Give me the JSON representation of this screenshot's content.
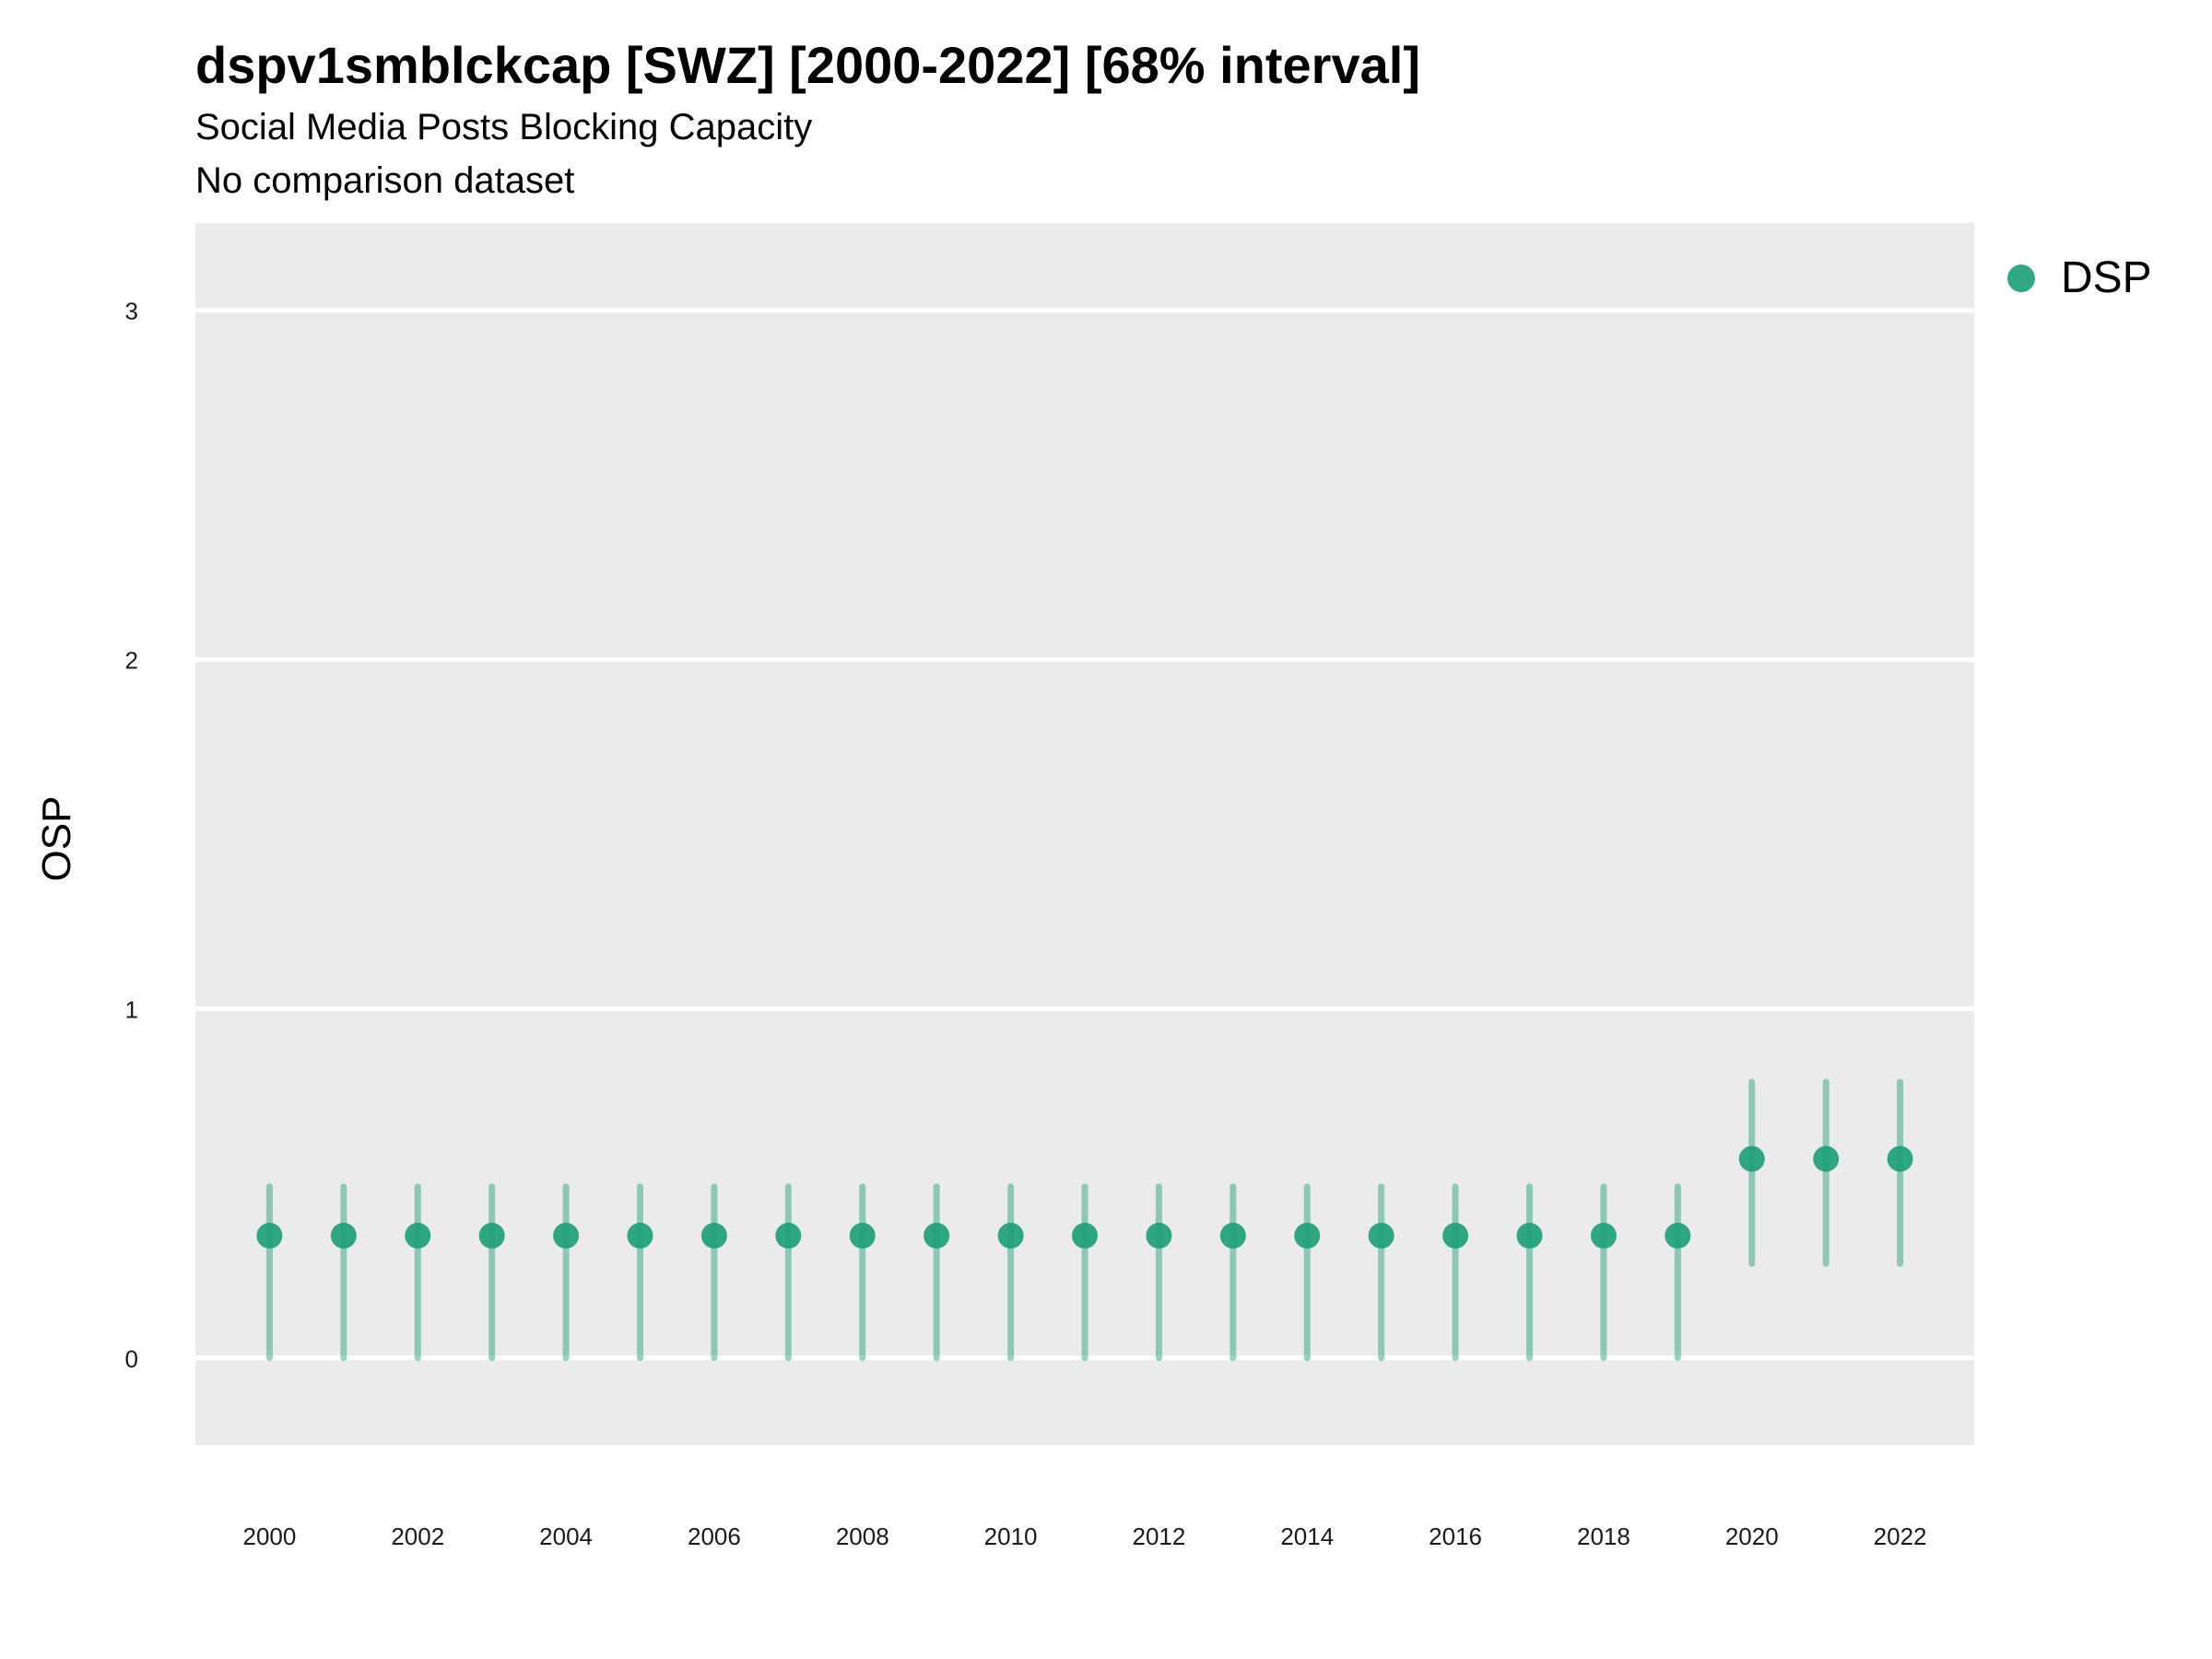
{
  "title": "dspv1smblckcap [SWZ] [2000-2022] [68% interval]",
  "subtitle": "Social Media Posts Blocking Capacity",
  "caption": "No comparison dataset",
  "colors": {
    "series": "#1b9e77",
    "panel": "#ebebeb",
    "grid": "#ffffff"
  },
  "chart_data": {
    "type": "scatter",
    "title": "dspv1smblckcap [SWZ] [2000-2022] [68% interval]",
    "subtitle": "Social Media Posts Blocking Capacity",
    "xlabel": "",
    "ylabel": "OSP",
    "ylim": [
      -0.25,
      3.25
    ],
    "yticks": [
      0,
      1,
      2,
      3
    ],
    "xlim": [
      1999,
      2023
    ],
    "xticks": [
      2000,
      2002,
      2004,
      2006,
      2008,
      2010,
      2012,
      2014,
      2016,
      2018,
      2020,
      2022
    ],
    "grid": true,
    "legend_position": "top-right",
    "series": [
      {
        "name": "DSP",
        "x": [
          2000,
          2001,
          2002,
          2003,
          2004,
          2005,
          2006,
          2007,
          2008,
          2009,
          2010,
          2011,
          2012,
          2013,
          2014,
          2015,
          2016,
          2017,
          2018,
          2019,
          2020,
          2021,
          2022
        ],
        "y": [
          0.35,
          0.35,
          0.35,
          0.35,
          0.35,
          0.35,
          0.35,
          0.35,
          0.35,
          0.35,
          0.35,
          0.35,
          0.35,
          0.35,
          0.35,
          0.35,
          0.35,
          0.35,
          0.35,
          0.35,
          0.57,
          0.57,
          0.57
        ],
        "lower": [
          0.0,
          0.0,
          0.0,
          0.0,
          0.0,
          0.0,
          0.0,
          0.0,
          0.0,
          0.0,
          0.0,
          0.0,
          0.0,
          0.0,
          0.0,
          0.0,
          0.0,
          0.0,
          0.0,
          0.0,
          0.27,
          0.27,
          0.27
        ],
        "upper": [
          0.49,
          0.49,
          0.49,
          0.49,
          0.49,
          0.49,
          0.49,
          0.49,
          0.49,
          0.49,
          0.49,
          0.49,
          0.49,
          0.49,
          0.49,
          0.49,
          0.49,
          0.49,
          0.49,
          0.49,
          0.79,
          0.79,
          0.79
        ]
      }
    ]
  }
}
